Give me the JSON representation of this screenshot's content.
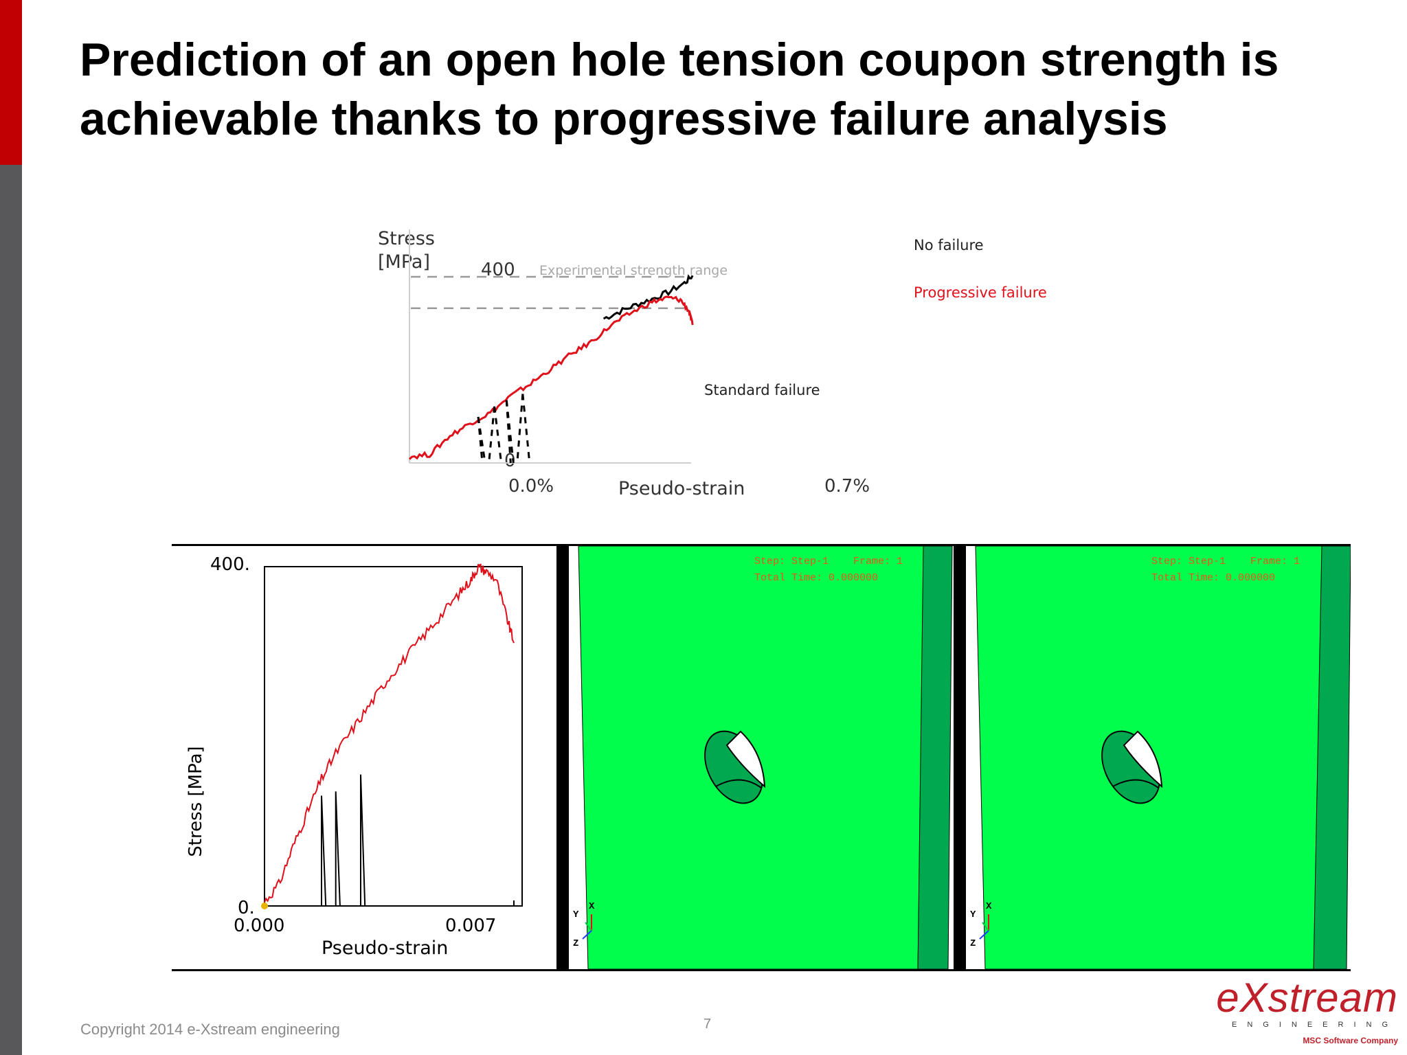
{
  "slide": {
    "title_line1": "Prediction of an open hole tension coupon strength is",
    "title_line2": "achievable thanks to progressive failure analysis",
    "copyright": "Copyright 2014 e-Xstream engineering",
    "page_number": "7",
    "accent_color": "#c00000"
  },
  "logo": {
    "brand": "eXstream",
    "tagline": "ENGINEERING",
    "company": "MSC Software Company"
  },
  "viewports": [
    {
      "line1": "Step: Step-1    Frame: 1",
      "line2": "Total Time: 0.000000",
      "triad": [
        "X",
        "Y",
        "Z"
      ]
    },
    {
      "line1": "Step: Step-1    Frame: 1",
      "line2": "Total Time: 0.000000",
      "triad": [
        "X",
        "Y",
        "Z"
      ]
    }
  ],
  "colors": {
    "mesh_green": "#00ff4c",
    "mesh_dark_green": "#00a850",
    "progressive": "#e0101b",
    "standard": "#000000",
    "reference_line": "#9a9a9a"
  },
  "chart_data": [
    {
      "type": "line",
      "ylabel_line1": "Stress",
      "ylabel_line2": "[MPa]",
      "xlabel": "Pseudo-strain",
      "x_ticks": [
        "0.0%",
        "0.7%"
      ],
      "y_ticks": [
        "0",
        "400"
      ],
      "xlim": [
        0,
        0.007
      ],
      "ylim": [
        0,
        450
      ],
      "reference_band_label": "Experimental strength range",
      "reference_band": [
        370,
        445
      ],
      "annotations": [
        "No failure",
        "Progressive failure",
        "Standard failure"
      ],
      "series": [
        {
          "name": "No failure",
          "x": [
            0.0048,
            0.0052,
            0.0056,
            0.006,
            0.0064,
            0.0068,
            0.007
          ],
          "y": [
            345,
            362,
            378,
            392,
            408,
            430,
            448
          ]
        },
        {
          "name": "Progressive failure",
          "x": [
            0,
            0.0005,
            0.001,
            0.0015,
            0.002,
            0.0025,
            0.003,
            0.0035,
            0.004,
            0.0045,
            0.005,
            0.0055,
            0.006,
            0.0064,
            0.0067,
            0.0069,
            0.007
          ],
          "y": [
            15,
            20,
            65,
            95,
            120,
            160,
            190,
            225,
            260,
            290,
            330,
            360,
            385,
            395,
            390,
            365,
            330
          ]
        },
        {
          "name": "Standard failure",
          "x": [
            0.0017,
            0.0019,
            0.0021,
            0.0022,
            0.0024,
            0.0026,
            0.0028,
            0.003,
            0.0032
          ],
          "y": [
            110,
            0,
            135,
            0,
            150,
            0,
            165,
            0,
            0
          ]
        }
      ]
    },
    {
      "type": "line",
      "ylabel": "Stress [MPa]",
      "xlabel": "Pseudo-strain",
      "x_ticks": [
        "0.000",
        "0.007"
      ],
      "y_ticks": [
        "0.",
        "400."
      ],
      "xlim": [
        0,
        0.007
      ],
      "ylim": [
        0,
        400
      ],
      "series": [
        {
          "x": [
            0,
            0.0004,
            0.0008,
            0.0012,
            0.0016,
            0.002,
            0.0025,
            0.003,
            0.0035,
            0.004,
            0.0045,
            0.005,
            0.0055,
            0.0058,
            0.006,
            0.0062,
            0.0065,
            0.0068,
            0.007
          ],
          "y": [
            5,
            25,
            70,
            110,
            150,
            180,
            210,
            240,
            270,
            295,
            320,
            345,
            370,
            385,
            400,
            395,
            385,
            340,
            310
          ]
        },
        {
          "x": [
            0.0016,
            0.0017,
            0.0018,
            0.002,
            0.0021,
            0.0022,
            0.0027,
            0.0028,
            0.0029
          ],
          "y": [
            130,
            0,
            0,
            135,
            0,
            0,
            155,
            0,
            0
          ]
        }
      ]
    }
  ]
}
